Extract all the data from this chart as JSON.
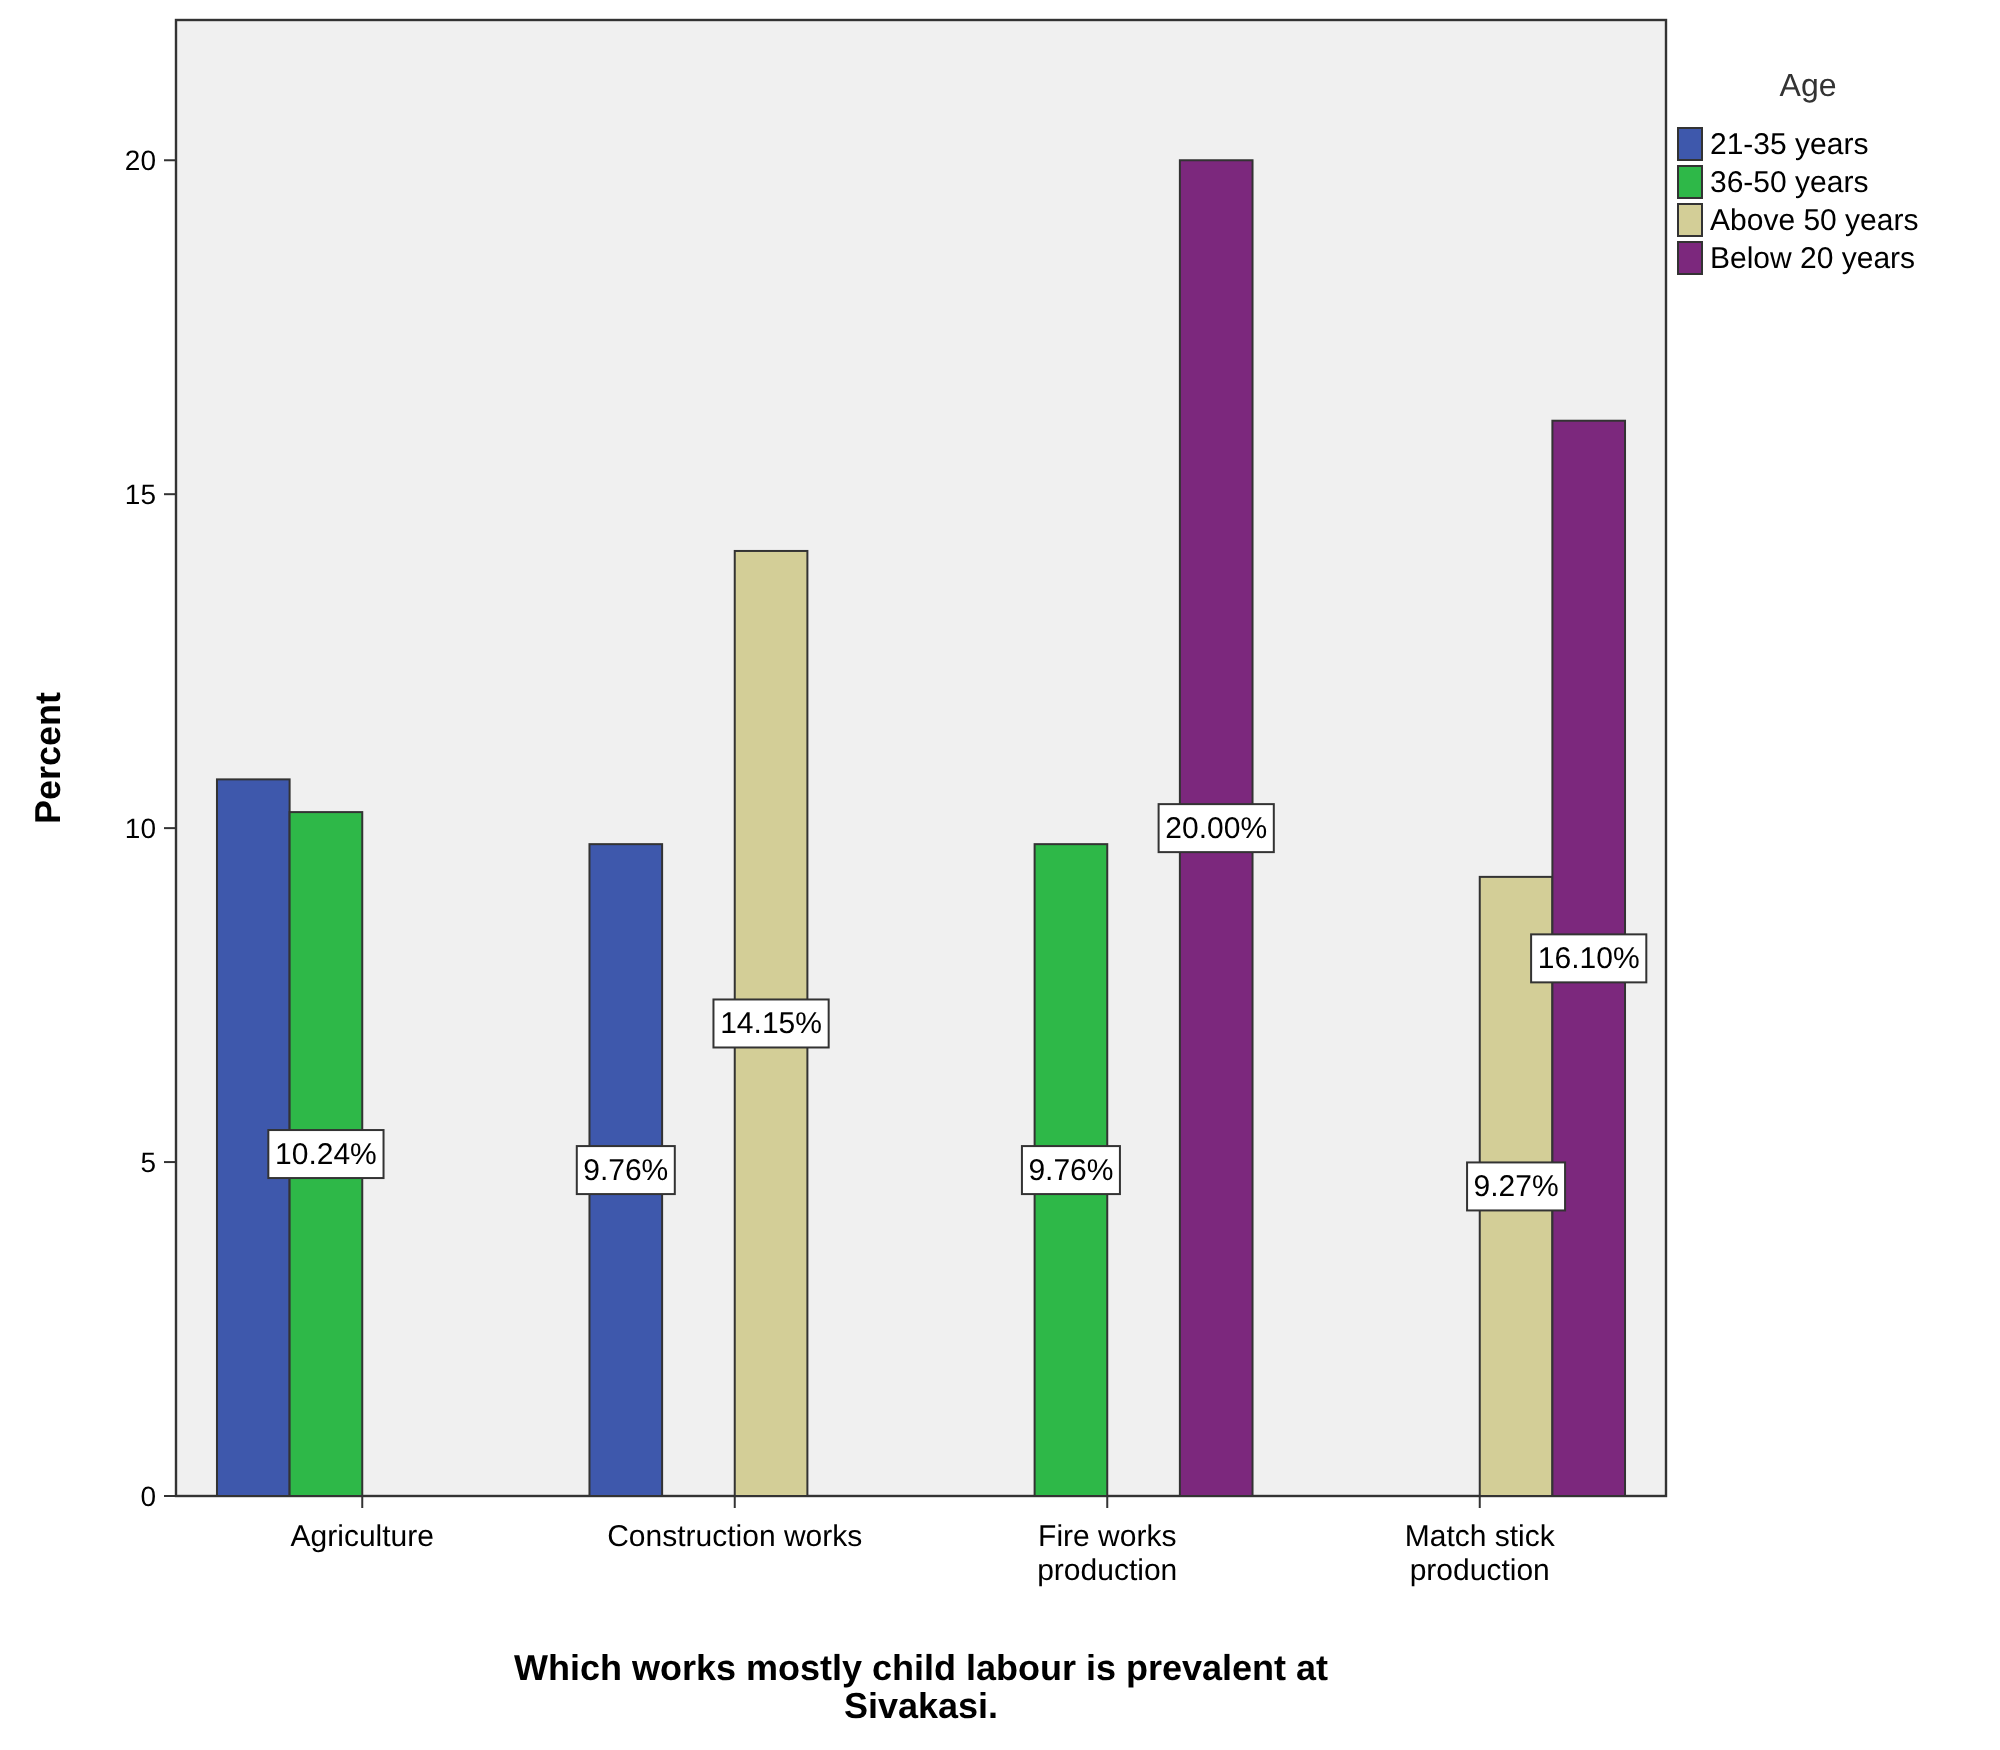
{
  "chart_data": {
    "type": "bar",
    "xlabel": "Which works mostly child labour is prevalent at Sivakasi.",
    "ylabel": "Percent",
    "legend_title": "Age",
    "legend": "top right",
    "categories": [
      "Agriculture",
      "Construction works",
      "Fire works production",
      "Match stick production"
    ],
    "series": [
      {
        "name": "21-35 years",
        "color": "#3e58ac",
        "values": [
          10.73,
          9.76,
          null,
          null
        ],
        "value_labels": [
          null,
          "9.76%",
          null,
          null
        ]
      },
      {
        "name": "36-50 years",
        "color": "#2eb848",
        "values": [
          10.24,
          null,
          9.76,
          null
        ],
        "value_labels": [
          "10.24%",
          null,
          "9.76%",
          null
        ]
      },
      {
        "name": "Above 50 years",
        "color": "#d3ce97",
        "values": [
          null,
          14.15,
          null,
          9.27
        ],
        "value_labels": [
          null,
          "14.15%",
          null,
          "9.27%"
        ]
      },
      {
        "name": "Below 20 years",
        "color": "#7c287d",
        "values": [
          null,
          null,
          20.0,
          16.1
        ],
        "value_labels": [
          null,
          null,
          "20.00%",
          "16.10%"
        ]
      }
    ],
    "ylim": [
      0,
      22.1
    ],
    "yticks": [
      0,
      5,
      10,
      15,
      20
    ],
    "grid": false
  }
}
